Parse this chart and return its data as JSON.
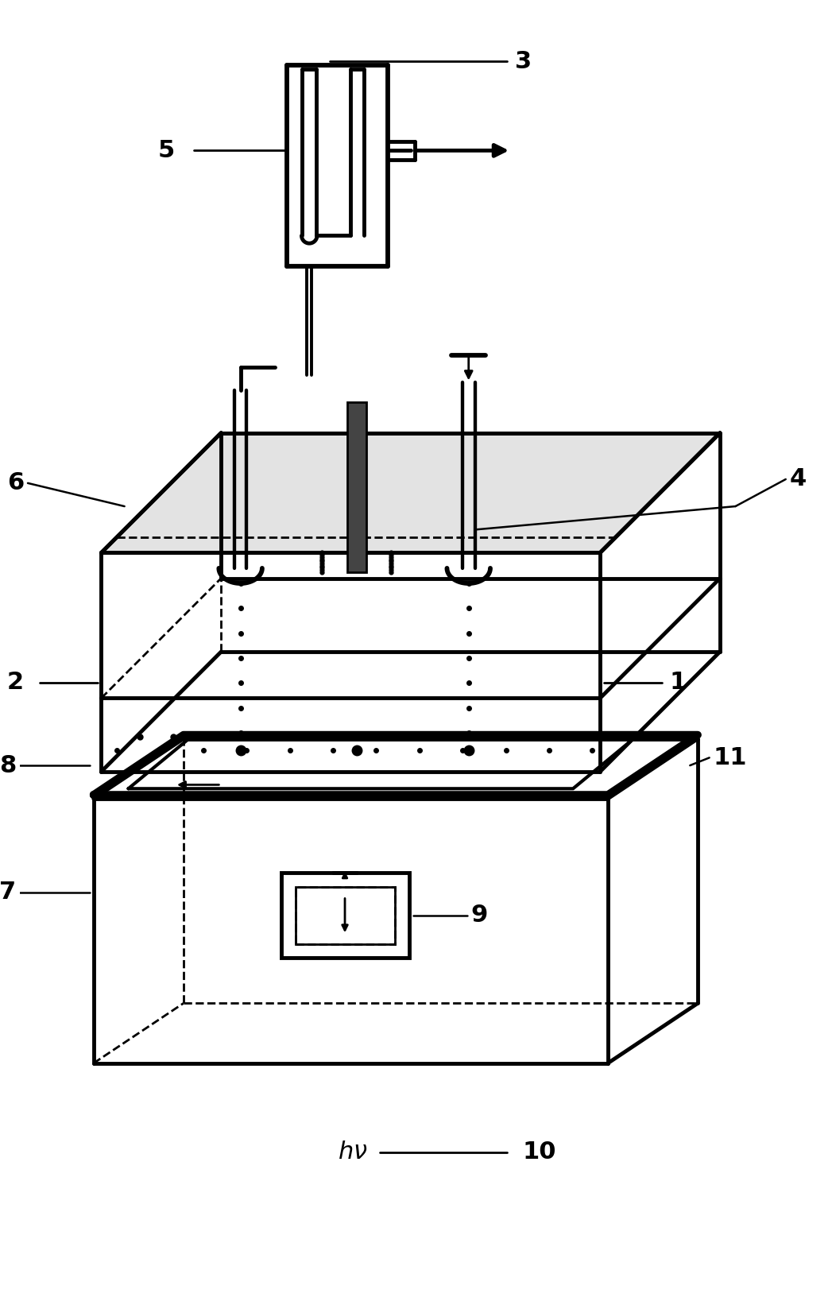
{
  "bg_color": "#ffffff",
  "line_color": "#000000",
  "lw": 2.0,
  "tlw": 3.5
}
